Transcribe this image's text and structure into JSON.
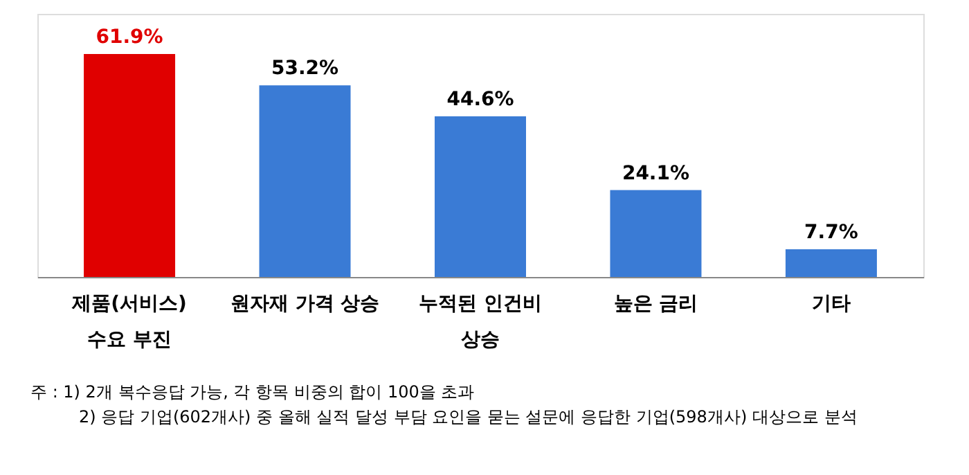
{
  "chart_data": {
    "type": "bar",
    "categories": [
      "제품(서비스)\n수요 부진",
      "원자재 가격 상승",
      "누적된 인건비\n상승",
      "높은 금리",
      "기타"
    ],
    "values": [
      61.9,
      53.2,
      44.6,
      24.1,
      7.7
    ],
    "colors": [
      "#e00000",
      "#3a7bd5",
      "#3a7bd5",
      "#3a7bd5",
      "#3a7bd5"
    ],
    "value_labels": [
      "61.9%",
      "53.2%",
      "44.6%",
      "24.1%",
      "7.7%"
    ],
    "annotations": [
      "주 : 1) 2개 복수응답 가능, 각 항목 비중의 합이 100을 초과",
      "2) 응답 기업(602개사) 중 올해 실적 달성 부담 요인을 묻는 설문에 응답한 기업(598개사) 대상으로 분석"
    ],
    "grid": false
  }
}
